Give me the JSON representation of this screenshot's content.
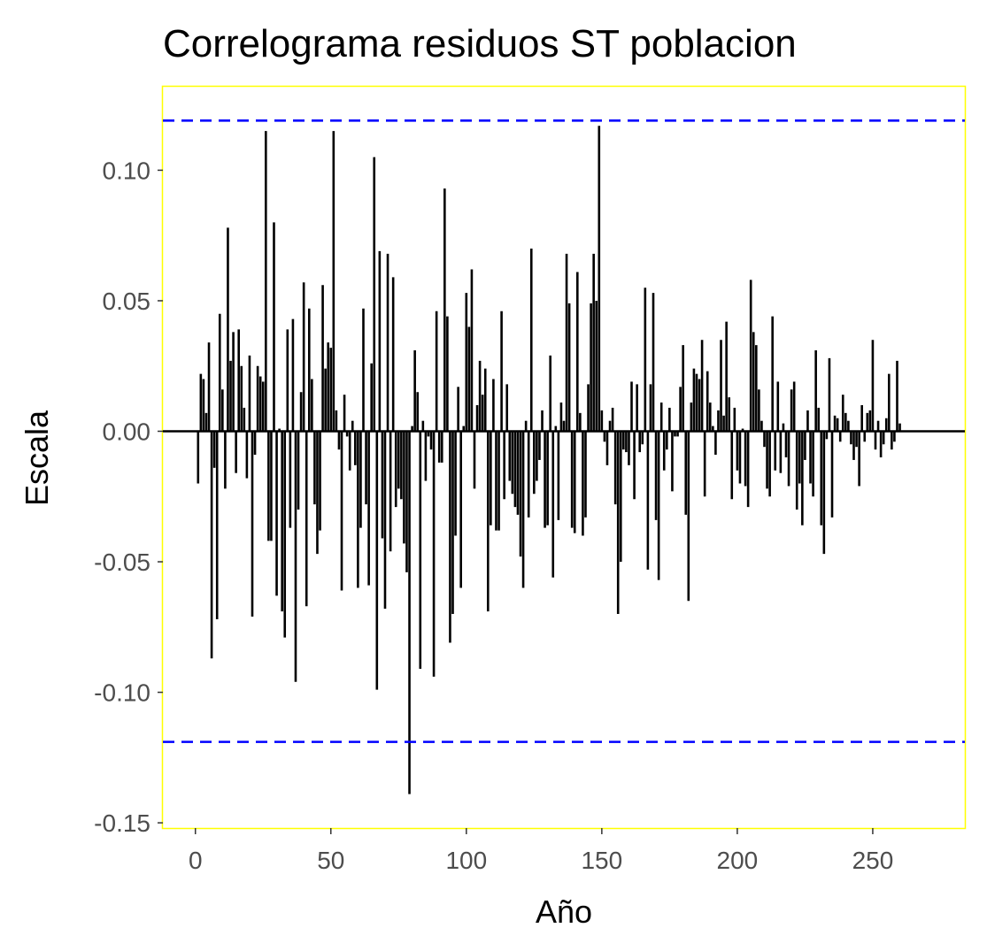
{
  "chart_data": {
    "type": "bar",
    "title": "Correlograma residuos ST poblacion",
    "xlabel": "Año",
    "ylabel": "Escala",
    "xlim": [
      -12,
      284
    ],
    "ylim": [
      -0.152,
      0.132
    ],
    "x_ticks": [
      0,
      50,
      100,
      150,
      200,
      250
    ],
    "x_tick_labels": [
      "0",
      "50",
      "100",
      "150",
      "200",
      "250"
    ],
    "y_ticks": [
      -0.15,
      -0.1,
      -0.05,
      0.0,
      0.05,
      0.1
    ],
    "y_tick_labels": [
      "-0.15",
      "-0.10",
      "-0.05",
      "0.00",
      "0.05",
      "0.10"
    ],
    "grid": false,
    "confidence_bounds": [
      0.119,
      -0.119
    ],
    "colors": {
      "bars": "#000000",
      "bounds": "#0000ff",
      "panel_border": "#ffff00",
      "zero_line": "#000000"
    },
    "lags_start": 1,
    "values": [
      -0.02,
      0.022,
      0.02,
      0.007,
      0.034,
      -0.087,
      -0.014,
      -0.072,
      0.045,
      0.016,
      -0.022,
      0.078,
      0.027,
      0.038,
      -0.016,
      0.039,
      0.025,
      0.009,
      -0.018,
      0.029,
      -0.071,
      -0.009,
      0.025,
      0.021,
      0.019,
      0.115,
      -0.042,
      -0.042,
      0.08,
      -0.063,
      0.001,
      -0.069,
      -0.079,
      0.039,
      -0.037,
      0.043,
      -0.096,
      -0.03,
      0.015,
      0.057,
      -0.067,
      0.047,
      0.02,
      -0.028,
      -0.047,
      -0.038,
      0.056,
      0.024,
      0.034,
      0.032,
      0.115,
      0.008,
      -0.007,
      -0.061,
      0.014,
      -0.002,
      -0.015,
      0.004,
      -0.013,
      -0.06,
      -0.037,
      0.047,
      -0.028,
      -0.059,
      0.026,
      0.105,
      -0.099,
      0.069,
      -0.041,
      -0.068,
      0.068,
      -0.046,
      0.059,
      -0.029,
      -0.022,
      -0.026,
      -0.043,
      -0.054,
      -0.139,
      0.002,
      0.031,
      0.015,
      -0.091,
      0.004,
      -0.019,
      -0.002,
      -0.007,
      -0.094,
      0.046,
      -0.012,
      -0.012,
      0.093,
      0.044,
      -0.081,
      -0.07,
      -0.04,
      0.017,
      -0.06,
      0.002,
      0.053,
      0.04,
      0.062,
      -0.022,
      0.01,
      0.027,
      0.014,
      0.024,
      -0.069,
      -0.036,
      0.02,
      -0.038,
      -0.038,
      0.046,
      -0.026,
      0.018,
      -0.019,
      -0.024,
      -0.029,
      -0.032,
      -0.048,
      -0.06,
      0.004,
      -0.033,
      0.07,
      -0.024,
      -0.019,
      -0.011,
      0.008,
      -0.037,
      -0.036,
      0.029,
      -0.056,
      0.002,
      -0.034,
      0.011,
      0.004,
      0.068,
      0.049,
      -0.037,
      -0.039,
      0.061,
      0.007,
      -0.04,
      -0.033,
      0.018,
      0.049,
      0.068,
      0.05,
      0.117,
      0.008,
      -0.004,
      -0.013,
      0.004,
      0.009,
      -0.028,
      -0.07,
      -0.05,
      -0.007,
      -0.008,
      -0.013,
      0.019,
      -0.026,
      0.018,
      -0.008,
      -0.005,
      0.055,
      -0.053,
      0.018,
      0.053,
      -0.034,
      -0.057,
      0.011,
      -0.015,
      -0.007,
      0.009,
      -0.023,
      -0.002,
      -0.002,
      0.017,
      0.033,
      -0.032,
      -0.065,
      0.011,
      0.024,
      0.022,
      0.02,
      0.035,
      -0.025,
      0.023,
      0.011,
      0.002,
      -0.009,
      0.008,
      0.035,
      0.006,
      0.042,
      0.013,
      -0.026,
      0.009,
      -0.015,
      -0.02,
      0.001,
      -0.021,
      -0.029,
      0.058,
      0.038,
      0.033,
      0.016,
      0.004,
      -0.006,
      -0.022,
      -0.025,
      0.044,
      -0.015,
      0.019,
      -0.016,
      0.003,
      -0.01,
      -0.021,
      0.016,
      0.019,
      -0.03,
      -0.02,
      -0.036,
      -0.011,
      0.008,
      -0.02,
      -0.025,
      0.031,
      0.009,
      -0.036,
      -0.047,
      -0.003,
      0.028,
      -0.033,
      0.006,
      0.005,
      -0.004,
      0.014,
      0.007,
      0.004,
      -0.005,
      -0.011,
      -0.006,
      -0.021,
      0.01,
      -0.004,
      0.007,
      0.008,
      0.035,
      -0.007,
      0.004,
      -0.01,
      -0.005,
      0.005,
      0.022,
      -0.007,
      -0.004,
      0.027,
      0.003
    ]
  }
}
